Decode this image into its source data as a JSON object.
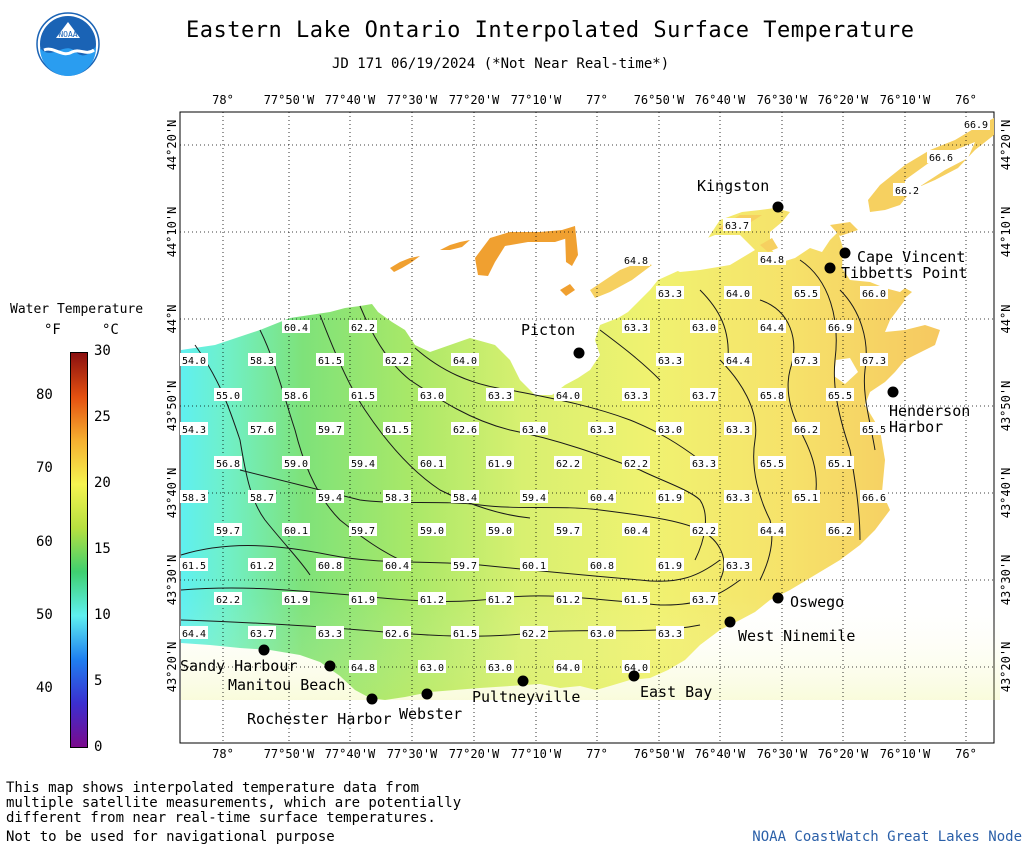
{
  "header": {
    "title": "Eastern Lake Ontario Interpolated Surface Temperature",
    "subtitle": "JD 171 06/19/2024 (*Not Near Real-time*)",
    "logo_text": "NOAA"
  },
  "legend": {
    "title": "Water Temperature",
    "unit_f": "°F",
    "unit_c": "°C",
    "ticks_f": [
      "40",
      "50",
      "60",
      "70",
      "80"
    ],
    "ticks_c": [
      "0",
      "5",
      "10",
      "15",
      "20",
      "25",
      "30"
    ],
    "f_range": [
      32,
      86
    ],
    "colors": [
      "#7a0a8c",
      "#3b2fd0",
      "#1f7ff0",
      "#5ff0f0",
      "#3fd070",
      "#b6e040",
      "#f6f450",
      "#f6b030",
      "#e45010",
      "#8a1010"
    ]
  },
  "axes": {
    "lon_labels": [
      "78°",
      "77°50'W",
      "77°40'W",
      "77°30'W",
      "77°20'W",
      "77°10'W",
      "77°",
      "76°50'W",
      "76°40'W",
      "76°30'W",
      "76°20'W",
      "76°10'W",
      "76°"
    ],
    "lat_labels": [
      "44°20'N",
      "44°10'N",
      "44°N",
      "43°50'N",
      "43°40'N",
      "43°30'N",
      "43°20'N"
    ]
  },
  "places": [
    {
      "name": "Kingston"
    },
    {
      "name": "Cape Vincent"
    },
    {
      "name": "Tibbetts Point"
    },
    {
      "name": "Picton"
    },
    {
      "name": "Henderson"
    },
    {
      "name": "Harbor"
    },
    {
      "name": "Oswego"
    },
    {
      "name": "West Ninemile"
    },
    {
      "name": "East Bay"
    },
    {
      "name": "Pultneyville"
    },
    {
      "name": "Webster"
    },
    {
      "name": "Rochester Harbor"
    },
    {
      "name": "Manitou Beach"
    },
    {
      "name": "Sandy Harbour"
    }
  ],
  "temps": [
    "66.9",
    "66.6",
    "66.2",
    "63.7",
    "64.8",
    "64.8",
    "63.3",
    "64.0",
    "65.5",
    "66.0",
    "60.4",
    "62.2",
    "63.3",
    "63.0",
    "64.4",
    "66.9",
    "54.0",
    "58.3",
    "61.5",
    "62.2",
    "64.0",
    "63.3",
    "64.4",
    "67.3",
    "67.3",
    "55.0",
    "58.6",
    "61.5",
    "63.0",
    "63.3",
    "64.0",
    "63.3",
    "63.7",
    "65.8",
    "65.5",
    "54.3",
    "57.6",
    "59.7",
    "61.5",
    "62.6",
    "63.0",
    "63.3",
    "63.0",
    "63.3",
    "66.2",
    "65.5",
    "56.8",
    "59.0",
    "59.4",
    "60.1",
    "61.9",
    "62.2",
    "62.2",
    "63.3",
    "65.5",
    "65.1",
    "58.3",
    "58.7",
    "59.4",
    "58.3",
    "58.4",
    "59.4",
    "60.4",
    "61.9",
    "63.3",
    "65.1",
    "66.6",
    "59.7",
    "60.1",
    "59.7",
    "59.0",
    "59.0",
    "59.7",
    "60.4",
    "62.2",
    "64.4",
    "66.2",
    "61.5",
    "61.2",
    "60.8",
    "60.4",
    "59.7",
    "60.1",
    "60.8",
    "61.9",
    "63.3",
    "62.2",
    "61.9",
    "61.9",
    "61.2",
    "61.2",
    "61.2",
    "61.5",
    "63.7",
    "64.4",
    "63.7",
    "63.3",
    "62.6",
    "61.5",
    "62.2",
    "63.0",
    "63.3",
    "64.8",
    "63.0",
    "63.0",
    "64.0",
    "64.0"
  ],
  "disclaimer": {
    "line1": "This map shows interpolated temperature data from",
    "line2": "multiple satellite measurements, which are potentially",
    "line3": "different from near real-time surface temperatures.",
    "line4": "Not to be used for navigational purpose"
  },
  "credit": "NOAA CoastWatch Great Lakes Node"
}
